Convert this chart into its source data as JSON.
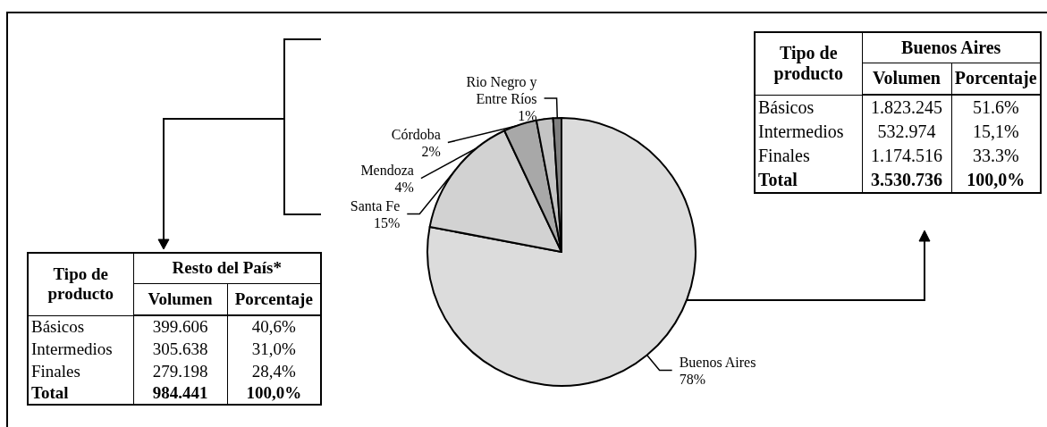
{
  "chart_data": [
    {
      "type": "pie",
      "categories": [
        "Buenos Aires",
        "Santa Fe",
        "Mendoza",
        "Córdoba",
        "Rio Negro y Entre Ríos"
      ],
      "values": [
        78,
        15,
        4,
        2,
        1
      ],
      "value_labels": [
        "78%",
        "15%",
        "4%",
        "2%",
        "1%"
      ],
      "colors": [
        "#dcdcdc",
        "#d2d2d2",
        "#a8a8a8",
        "#c4c4c4",
        "#808080"
      ]
    },
    {
      "type": "other",
      "title": "Resto del País*",
      "ylabel": "Tipo de producto",
      "categories": [
        "Básicos",
        "Intermedios",
        "Finales",
        "Total"
      ],
      "series": [
        {
          "name": "Volumen",
          "values": [
            399606,
            305638,
            279198,
            984441
          ],
          "value_labels": [
            "399.606",
            "305.638",
            "279.198",
            "984.441"
          ]
        },
        {
          "name": "Porcentaje",
          "values": [
            40.6,
            31.0,
            28.4,
            100.0
          ],
          "value_labels": [
            "40,6%",
            "31,0%",
            "28,4%",
            "100,0%"
          ]
        }
      ]
    },
    {
      "type": "other",
      "title": "Buenos Aires",
      "ylabel": "Tipo de producto",
      "categories": [
        "Básicos",
        "Intermedios",
        "Finales",
        "Total"
      ],
      "series": [
        {
          "name": "Volumen",
          "values": [
            1823245,
            532974,
            1174516,
            3530736
          ],
          "value_labels": [
            "1.823.245",
            "532.974",
            "1.174.516",
            "3.530.736"
          ]
        },
        {
          "name": "Porcentaje",
          "values": [
            51.6,
            15.1,
            33.3,
            100.0
          ],
          "value_labels": [
            "51.6%",
            "15,1%",
            "33.3%",
            "100,0%"
          ]
        }
      ]
    }
  ]
}
